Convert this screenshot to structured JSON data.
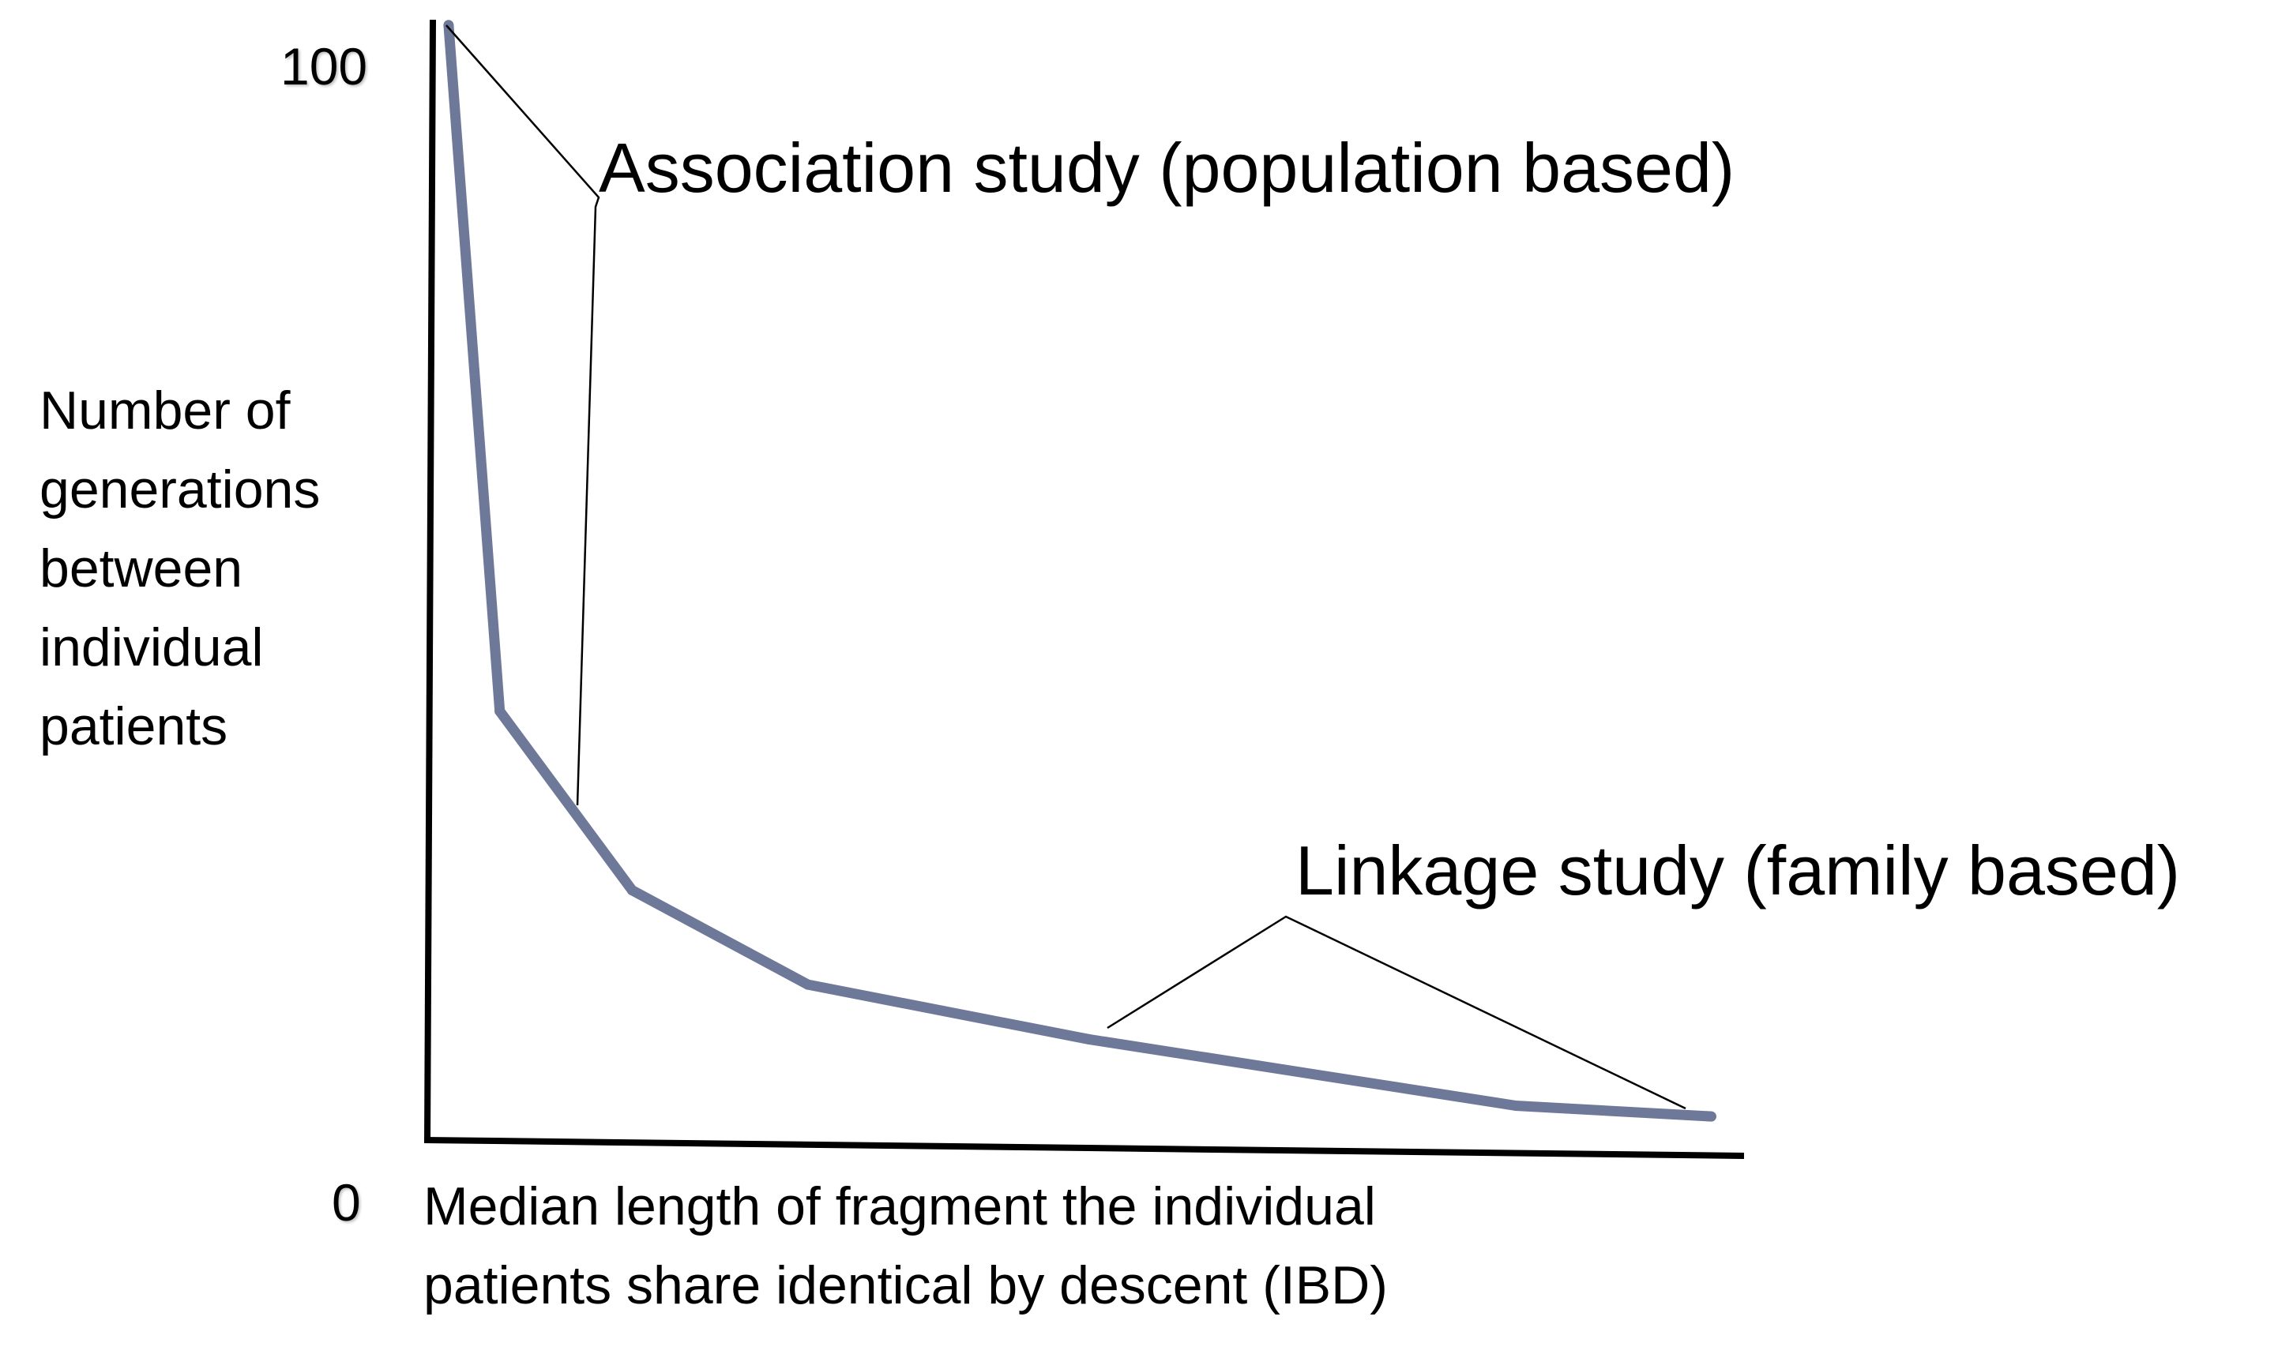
{
  "chart_data": {
    "type": "line",
    "title": "",
    "y_ticks": [
      "100",
      "0"
    ],
    "ylabel_lines": [
      "Number of",
      "generations",
      "between",
      "individual",
      "patients"
    ],
    "xlabel_lines": [
      "Median length of fragment the individual",
      "patients share identical by descent (IBD)"
    ],
    "ylim": [
      0,
      100
    ],
    "xlim": [
      0,
      100
    ],
    "series": [
      {
        "color": "#6e7899",
        "x": [
          1.2,
          5.1,
          15.2,
          28.6,
          50.0,
          82.6,
          97.5
        ],
        "y": [
          104,
          40,
          23.3,
          14.5,
          9.4,
          3.2,
          2.2
        ]
      }
    ],
    "annotations": [
      {
        "id": "association",
        "text": "Association study (population based)"
      },
      {
        "id": "linkage",
        "text": "Linkage study (family based)"
      }
    ],
    "grid": false,
    "legend": "none"
  }
}
